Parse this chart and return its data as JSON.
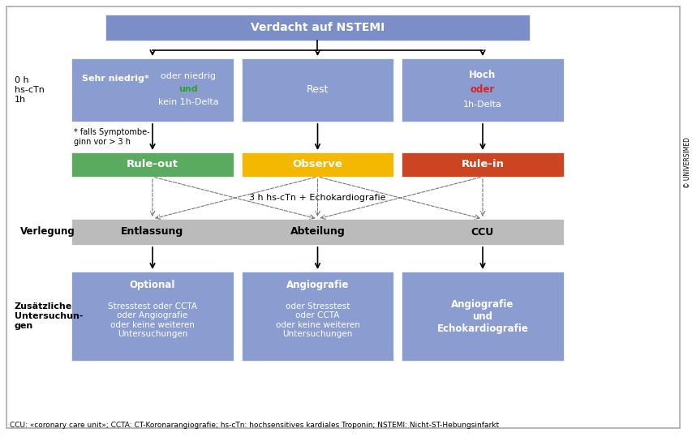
{
  "title": "Verdacht auf NSTEMI",
  "title_box_color": "#7b8ec8",
  "box_color_blue": "#8b9cd0",
  "box_color_green": "#5aaa60",
  "box_color_yellow": "#f5b800",
  "box_color_red": "#cc4422",
  "box_color_gray": "#bbbbbb",
  "background_color": "#ffffff",
  "label_left_0h": "0 h\nhs-cTn\n1h",
  "label_verlegung": "Verlegung",
  "label_zusatzliche": "Zusätzliche\nUntersuchun-\ngen",
  "col1_row1_left": "Sehr niedrig*",
  "col1_row1_right1": "oder niedrig",
  "col1_row1_right2": "und",
  "col1_row1_right3": "kein 1h-Delta",
  "col2_row1": "Rest",
  "col3_row1_1": "Hoch",
  "col3_row1_2": "oder",
  "col3_row1_3": "1h-Delta",
  "col1_row2": "Rule-out",
  "col2_row2": "Observe",
  "col3_row2": "Rule-in",
  "middle_text": "3 h hs-cTn + Echokardiografie",
  "col1_row3": "Entlassung",
  "col2_row3": "Abteilung",
  "col3_row3": "CCU",
  "col1_row4_title": "Optional",
  "col1_row4_body": "Stresstest oder CCTA\noder Angiografie\noder keine weiteren\nUntersuchungen",
  "col2_row4_title": "Angiografie",
  "col2_row4_body": "oder Stresstest\noder CCTA\noder keine weiteren\nUntersuchungen",
  "col3_row4_title": "Angiografie\nund\nEchokardiografie",
  "footnote": "CCU: «coronary care unit»; CCTA: CT-Koronarangiografie; hs-cTn: hochsensitives kardiales Troponin; NSTEMI: Nicht-ST-Hebungsinfarkt",
  "copyright": "© UNIVERSIMED",
  "note_text": "* falls Symptombe-\nginn vor > 3 h",
  "green_text": "#22aa22",
  "red_text": "#dd2222",
  "white_text": "#ffffff",
  "black_text": "#111111"
}
